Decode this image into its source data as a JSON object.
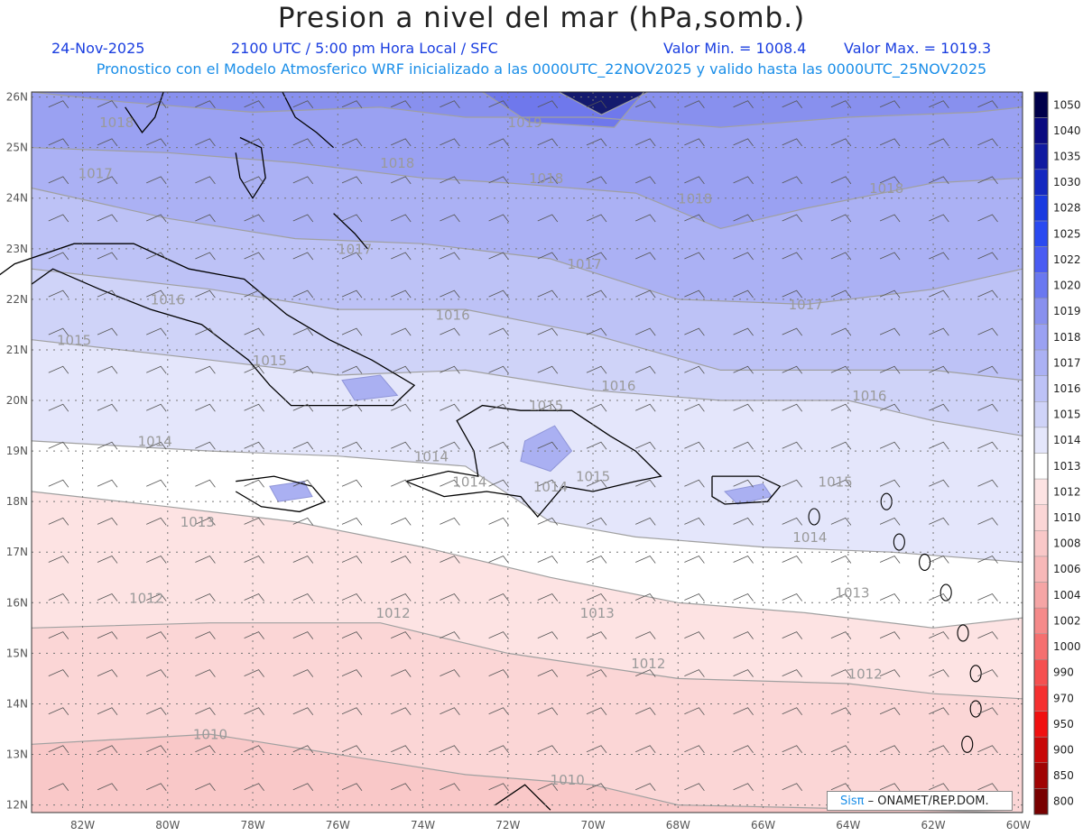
{
  "header": {
    "title": "Presion a nivel del mar (hPa,somb.)",
    "date": "24-Nov-2025",
    "time": "2100 UTC / 5:00 pm Hora Local / SFC",
    "valmin": "Valor Min. = 1008.4",
    "valmax": "Valor Max. = 1019.3",
    "forecast": "Pronostico con el Modelo Atmosferico WRF inicializado a las 0000UTC_22NOV2025 y valido hasta las  0000UTC_25NOV2025"
  },
  "map": {
    "lon_range": [
      -83.2,
      -59.9
    ],
    "lat_range": [
      11.85,
      26.1
    ],
    "lon_ticks": [
      "82W",
      "80W",
      "78W",
      "76W",
      "74W",
      "72W",
      "70W",
      "68W",
      "66W",
      "64W",
      "62W",
      "60W"
    ],
    "lat_ticks": [
      "12N",
      "13N",
      "14N",
      "15N",
      "16N",
      "17N",
      "18N",
      "19N",
      "20N",
      "21N",
      "22N",
      "23N",
      "24N",
      "25N",
      "26N"
    ],
    "colors": {
      "ocean_bands": [
        "#f9c8c8",
        "#fbd6d6",
        "#fde3e3",
        "#ffffff",
        "#e4e6fb",
        "#cfd3f8",
        "#bdc2f6",
        "#abb1f4",
        "#9aa1f2",
        "#8890ee",
        "#6f78ec",
        "#141a6e"
      ]
    },
    "contour_labels": [
      {
        "text": "1018",
        "lon": -81.2,
        "lat": 25.4
      },
      {
        "text": "1017",
        "lon": -81.7,
        "lat": 24.4
      },
      {
        "text": "1018",
        "lon": -74.6,
        "lat": 24.6
      },
      {
        "text": "1018",
        "lon": -71.1,
        "lat": 24.3
      },
      {
        "text": "1019",
        "lon": -71.6,
        "lat": 25.4
      },
      {
        "text": "1018",
        "lon": -67.6,
        "lat": 23.9
      },
      {
        "text": "1018",
        "lon": -63.1,
        "lat": 24.1
      },
      {
        "text": "1017",
        "lon": -75.6,
        "lat": 22.9
      },
      {
        "text": "1017",
        "lon": -70.2,
        "lat": 22.6
      },
      {
        "text": "1017",
        "lon": -65.0,
        "lat": 21.8
      },
      {
        "text": "1016",
        "lon": -80.0,
        "lat": 21.9
      },
      {
        "text": "1016",
        "lon": -73.3,
        "lat": 21.6
      },
      {
        "text": "1016",
        "lon": -69.4,
        "lat": 20.2
      },
      {
        "text": "1016",
        "lon": -63.5,
        "lat": 20.0
      },
      {
        "text": "1015",
        "lon": -82.2,
        "lat": 21.1
      },
      {
        "text": "1015",
        "lon": -77.6,
        "lat": 20.7
      },
      {
        "text": "1015",
        "lon": -71.1,
        "lat": 19.8
      },
      {
        "text": "1015",
        "lon": -70.0,
        "lat": 18.4
      },
      {
        "text": "1015",
        "lon": -64.3,
        "lat": 18.3
      },
      {
        "text": "1014",
        "lon": -80.3,
        "lat": 19.1
      },
      {
        "text": "1014",
        "lon": -73.8,
        "lat": 18.8
      },
      {
        "text": "1014",
        "lon": -71.0,
        "lat": 18.2
      },
      {
        "text": "1014",
        "lon": -64.9,
        "lat": 17.2
      },
      {
        "text": "1014",
        "lon": -72.9,
        "lat": 18.3
      },
      {
        "text": "1013",
        "lon": -79.3,
        "lat": 17.5
      },
      {
        "text": "1013",
        "lon": -63.9,
        "lat": 16.1
      },
      {
        "text": "1013",
        "lon": -69.9,
        "lat": 15.7
      },
      {
        "text": "1012",
        "lon": -80.5,
        "lat": 16.0
      },
      {
        "text": "1012",
        "lon": -74.7,
        "lat": 15.7
      },
      {
        "text": "1012",
        "lon": -68.7,
        "lat": 14.7
      },
      {
        "text": "1012",
        "lon": -63.6,
        "lat": 14.5
      },
      {
        "text": "1010",
        "lon": -79.0,
        "lat": 13.3
      },
      {
        "text": "1010",
        "lon": -70.6,
        "lat": 12.4
      }
    ]
  },
  "legend": {
    "levels": [
      "1050",
      "1040",
      "1035",
      "1030",
      "1028",
      "1025",
      "1022",
      "1020",
      "1019",
      "1018",
      "1017",
      "1016",
      "1015",
      "1014",
      "1013",
      "1012",
      "1010",
      "1008",
      "1006",
      "1004",
      "1002",
      "1000",
      "990",
      "970",
      "950",
      "900",
      "850",
      "800"
    ],
    "colors": [
      "#00004a",
      "#0a0a80",
      "#101aa0",
      "#1428c0",
      "#1a3ae0",
      "#2a4af0",
      "#4a5cf2",
      "#6a78f0",
      "#8890ee",
      "#9aa1f2",
      "#abb1f4",
      "#bdc2f6",
      "#cfd3f8",
      "#e4e6fb",
      "#ffffff",
      "#fde3e3",
      "#fbd6d6",
      "#f9c8c8",
      "#f7b8b8",
      "#f5a5a5",
      "#f58a8a",
      "#f57070",
      "#f55050",
      "#f53030",
      "#f01010",
      "#c80808",
      "#a00404",
      "#780000"
    ]
  },
  "credit": {
    "sis": "Sisπ",
    "org": " – ONAMET/REP.DOM."
  }
}
